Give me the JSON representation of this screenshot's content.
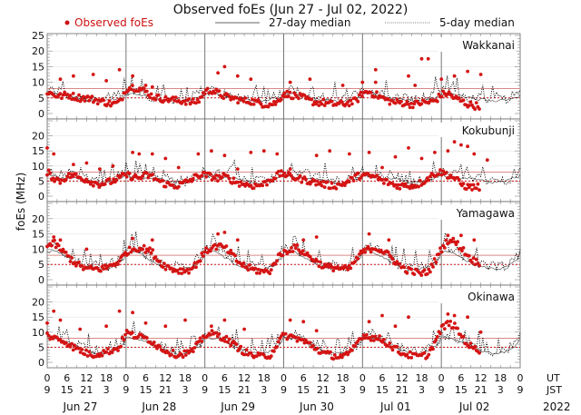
{
  "chart_data": {
    "type": "scatter",
    "title": "Observed foEs (Jun 27 - Jul 02, 2022)",
    "ylabel": "foEs (MHz)",
    "xlabel": "",
    "ylim": [
      0,
      25
    ],
    "yticks": [
      0,
      5,
      10,
      15,
      20,
      25
    ],
    "yticks_lower_panels": [
      0,
      5,
      10,
      15,
      20
    ],
    "grid": true,
    "legend": {
      "placement": "top",
      "entries": [
        {
          "label": "Observed foEs",
          "style": "red-dot",
          "color": "#cc1111"
        },
        {
          "label": "27-day median",
          "style": "solid-line",
          "color": "#111111"
        },
        {
          "label": "5-day median",
          "style": "dotted-line",
          "color": "#111111"
        }
      ]
    },
    "x_axis": {
      "days": [
        "Jun 27",
        "Jun 28",
        "Jun 29",
        "Jun 30",
        "Jul 01",
        "Jul 02"
      ],
      "ut_ticks": [
        "0",
        "6",
        "12",
        "18"
      ],
      "jst_ticks": [
        "9",
        "15",
        "21",
        "3"
      ],
      "ut_label": "UT",
      "jst_label": "JST",
      "year_label": "2022",
      "final_ut": "0",
      "final_jst": "9"
    },
    "reference_lines": [
      {
        "name": "upper-threshold",
        "value": 8,
        "style": "solid",
        "color": "#d98a8a"
      },
      {
        "name": "lower-threshold",
        "value": 5,
        "style": "dotted",
        "color": "#cc1111"
      }
    ],
    "series": [
      {
        "name": "Wakkanai",
        "observed_profile": [
          7,
          6,
          5.5,
          6,
          5.5,
          5,
          5,
          4.5,
          4,
          3.5,
          3,
          3.5,
          8,
          8.5,
          8,
          7,
          5.5,
          5,
          4.5,
          4.5,
          4,
          4,
          3.5,
          4,
          7,
          7.5,
          6.5,
          5.5,
          5,
          4.5,
          4,
          4,
          3.5,
          3,
          3,
          3.5,
          6.5,
          6,
          5.5,
          5,
          4,
          3.5,
          3.5,
          3,
          3,
          3,
          3.5,
          4,
          6.5,
          7,
          6,
          5,
          4,
          3.5,
          3.5,
          3,
          3,
          3.5,
          3.5,
          4,
          6,
          6.5,
          5,
          4,
          3,
          2.5,
          2.5
        ],
        "outliers": [
          [
            2,
            11
          ],
          [
            4,
            12
          ],
          [
            7,
            12.5
          ],
          [
            9,
            10.5
          ],
          [
            11,
            14
          ],
          [
            13,
            12
          ],
          [
            15,
            9
          ],
          [
            16,
            8.5
          ],
          [
            26,
            13
          ],
          [
            27,
            15
          ],
          [
            29,
            12
          ],
          [
            31,
            11
          ],
          [
            37,
            10
          ],
          [
            40,
            11
          ],
          [
            45,
            9
          ],
          [
            48,
            10
          ],
          [
            50,
            10
          ],
          [
            56,
            9
          ],
          [
            60,
            11
          ],
          [
            62,
            12
          ],
          [
            64,
            13.5
          ],
          [
            66,
            12.5
          ],
          [
            55,
            12
          ],
          [
            57,
            17.5
          ],
          [
            58,
            17.5
          ],
          [
            50,
            14
          ]
        ],
        "median27": [
          6,
          6.5,
          6,
          5.5,
          5,
          4.5,
          4.5,
          4,
          4,
          4.5,
          5,
          5.5
        ],
        "median5": [
          7,
          7.5,
          7,
          6,
          5,
          5,
          5,
          4.5,
          4.5,
          5,
          6,
          6.5
        ]
      },
      {
        "name": "Kokubunji",
        "observed_profile": [
          8,
          6,
          5,
          6.5,
          7,
          6,
          5.5,
          4.5,
          4,
          4.5,
          5,
          6,
          7,
          6.5,
          6,
          7,
          6.5,
          5,
          4,
          3.5,
          3.5,
          4.5,
          5.5,
          7,
          7,
          6.5,
          6,
          6.5,
          5.5,
          4.5,
          4,
          3.5,
          3.5,
          4,
          5.5,
          7,
          7.5,
          6.5,
          6,
          5.5,
          5,
          4.5,
          4,
          3.5,
          3.5,
          4,
          5,
          6.5,
          7,
          6.5,
          6.5,
          5,
          4.5,
          3.5,
          3.5,
          3.5,
          3.5,
          4.5,
          6,
          7.5,
          8,
          7,
          6,
          4,
          3,
          3,
          3
        ],
        "outliers": [
          [
            0,
            16
          ],
          [
            1,
            14
          ],
          [
            4,
            10.5
          ],
          [
            6,
            11
          ],
          [
            8,
            9
          ],
          [
            10,
            10
          ],
          [
            13,
            14.5
          ],
          [
            14,
            14
          ],
          [
            16,
            14
          ],
          [
            18,
            12.5
          ],
          [
            20,
            9.5
          ],
          [
            23,
            14
          ],
          [
            25,
            15
          ],
          [
            27,
            13.5
          ],
          [
            29,
            9
          ],
          [
            31,
            14.5
          ],
          [
            33,
            15
          ],
          [
            35,
            14
          ],
          [
            37,
            9
          ],
          [
            41,
            13.5
          ],
          [
            43,
            15
          ],
          [
            46,
            14
          ],
          [
            49,
            14.5
          ],
          [
            51,
            9.5
          ],
          [
            53,
            13
          ],
          [
            55,
            16
          ],
          [
            57,
            12.5
          ],
          [
            59,
            14.5
          ],
          [
            61,
            15
          ],
          [
            63,
            17
          ],
          [
            65,
            14
          ],
          [
            67,
            12
          ],
          [
            62,
            18
          ],
          [
            64,
            16.5
          ]
        ],
        "median27": [
          7,
          6.5,
          6,
          6,
          6,
          5.5,
          5,
          4.5,
          4.5,
          5,
          6,
          6.5
        ],
        "median5": [
          8,
          7.5,
          7,
          7.5,
          7,
          6,
          5.5,
          5,
          5,
          5.5,
          6.5,
          7.5
        ]
      },
      {
        "name": "Yamagawa",
        "observed_profile": [
          11,
          12,
          10,
          8,
          6,
          4.5,
          3.5,
          3.5,
          3.5,
          4,
          5,
          6,
          9,
          10,
          10.5,
          10,
          9,
          6,
          4.5,
          3.5,
          3,
          3,
          3.5,
          6,
          9,
          10.5,
          11,
          10.5,
          8.5,
          6,
          4.5,
          3.5,
          3,
          2.5,
          3,
          7,
          9,
          10,
          10.5,
          9,
          7.5,
          6,
          4.5,
          4,
          4,
          3.5,
          3.5,
          6.5,
          9,
          10,
          10.5,
          9.5,
          8,
          6,
          4,
          3,
          2.5,
          2,
          2.5,
          6,
          10,
          13,
          12.5,
          10.5,
          8,
          6,
          5.5
        ],
        "outliers": [
          [
            1,
            14
          ],
          [
            2,
            13
          ],
          [
            6,
            10
          ],
          [
            13,
            13.5
          ],
          [
            16,
            13
          ],
          [
            26,
            15
          ],
          [
            27,
            15.5
          ],
          [
            29,
            13
          ],
          [
            39,
            13
          ],
          [
            41,
            14
          ],
          [
            49,
            15
          ],
          [
            52,
            13
          ],
          [
            61,
            14.5
          ],
          [
            63,
            14.5
          ],
          [
            65,
            13
          ]
        ],
        "median27": [
          9,
          9.5,
          8.5,
          7,
          5.5,
          4.5,
          4,
          3.5,
          3.5,
          4,
          5.5,
          7.5
        ],
        "median5": [
          10,
          10.5,
          10,
          8,
          6,
          5,
          4.5,
          4.5,
          4,
          4.5,
          6,
          8.5
        ]
      },
      {
        "name": "Okinawa",
        "observed_profile": [
          9,
          8,
          7.5,
          6.5,
          5,
          4,
          3,
          2.5,
          3,
          3.5,
          4,
          5,
          10,
          9,
          8.5,
          8,
          7,
          5,
          4,
          3,
          2.5,
          3,
          3.5,
          6,
          9,
          9.5,
          9,
          8,
          6.5,
          5,
          3.5,
          2.5,
          2,
          2,
          2.5,
          6,
          9,
          8.5,
          8,
          7,
          6,
          4.5,
          3,
          2.5,
          2,
          2,
          2.5,
          6,
          9,
          8.5,
          8,
          7.5,
          6,
          4.5,
          3,
          2.5,
          2,
          2,
          2.5,
          6.5,
          11,
          13,
          12,
          9,
          6,
          4.5,
          4
        ],
        "outliers": [
          [
            0,
            13
          ],
          [
            1,
            17
          ],
          [
            2,
            14
          ],
          [
            5,
            11
          ],
          [
            9,
            12
          ],
          [
            11,
            17
          ],
          [
            13,
            16.5
          ],
          [
            15,
            13
          ],
          [
            18,
            12
          ],
          [
            21,
            14
          ],
          [
            25,
            12
          ],
          [
            27,
            14
          ],
          [
            30,
            11
          ],
          [
            37,
            14
          ],
          [
            39,
            13.5
          ],
          [
            41,
            10.5
          ],
          [
            49,
            13.5
          ],
          [
            51,
            15.5
          ],
          [
            53,
            12
          ],
          [
            55,
            15
          ],
          [
            61,
            16
          ],
          [
            62,
            15.5
          ],
          [
            64,
            15
          ],
          [
            66,
            10
          ]
        ],
        "median27": [
          8.5,
          8,
          7.5,
          6.5,
          5.5,
          4.5,
          3.5,
          3,
          3,
          3.5,
          5,
          7
        ],
        "median5": [
          9.5,
          9,
          8.5,
          7.5,
          6,
          5,
          4,
          3.5,
          3.5,
          4,
          5.5,
          8
        ]
      }
    ]
  }
}
